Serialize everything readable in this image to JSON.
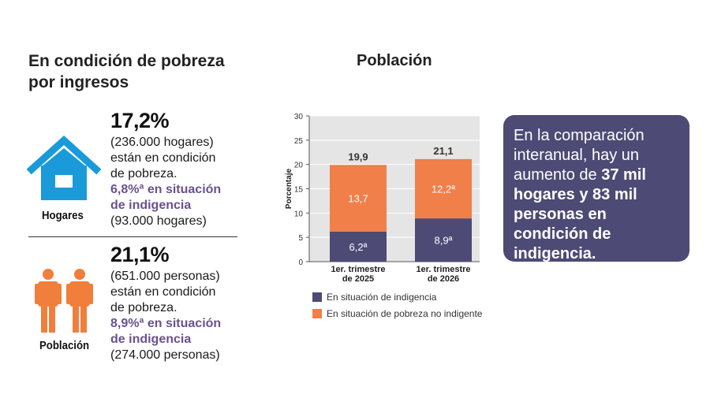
{
  "left": {
    "title_line1": "En condición de pobreza",
    "title_line2": "por ingresos",
    "hogares": {
      "icon_label": "Hogares",
      "pct": "17,2%",
      "line1": "(236.000 hogares)",
      "line2": "están en condición",
      "line3": "de pobreza.",
      "indig1": "6,8%ª en situación",
      "indig2": "de indigencia",
      "line4": "(93.000 hogares)"
    },
    "poblacion": {
      "icon_label": "Población",
      "pct": "21,1%",
      "line1": "(651.000 personas)",
      "line2": "están en condición",
      "line3": "de pobreza.",
      "indig1": "8,9%ª en situación",
      "indig2": "de indigencia",
      "line4": "(274.000 personas)"
    },
    "colors": {
      "house": "#1a9ad9",
      "people": "#f07f3c",
      "indigencia_text": "#6a5190"
    }
  },
  "callout": {
    "t1": "En la comparación interanual, hay un aumento de ",
    "b1": "37 mil hogares y 83 mil personas en condición de indigencia."
  },
  "chart_data": {
    "type": "bar",
    "stacked": true,
    "title": "Población",
    "ylabel": "Porcentaje",
    "ylim": [
      0,
      30
    ],
    "yticks": [
      0,
      5,
      10,
      15,
      20,
      25,
      30
    ],
    "grid": true,
    "categories": [
      [
        "1er. trimestre",
        "de 2025"
      ],
      [
        "1er. trimestre",
        "de 2026"
      ]
    ],
    "series": [
      {
        "name": "En situación de indigencia",
        "color": "#4d4a75",
        "values": [
          6.2,
          8.9
        ],
        "labels": [
          "6,2ª",
          "8,9ª"
        ]
      },
      {
        "name": "En situación de pobreza no indigente",
        "color": "#f07f4a",
        "values": [
          13.7,
          12.2
        ],
        "labels": [
          "13,7",
          "12,2ª"
        ]
      }
    ],
    "totals": [
      "19,9",
      "21,1"
    ],
    "legend": "bottom"
  }
}
